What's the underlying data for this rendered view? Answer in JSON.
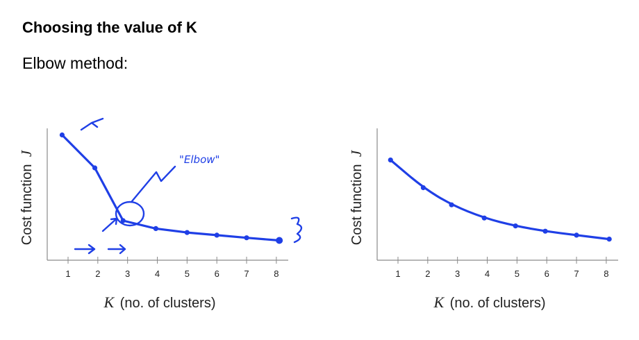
{
  "header": {
    "title": "Choosing the value of K",
    "subtitle": "Elbow method:"
  },
  "colors": {
    "ink": "#1f3fe6",
    "axis": "#8a8a8a",
    "text": "#222222"
  },
  "chart_data": [
    {
      "type": "line",
      "ylabel_text": "Cost function",
      "ylabel_symbol": "J",
      "xlabel_symbol": "K",
      "xlabel_text": "(no. of clusters)",
      "x_ticks": [
        "1",
        "2",
        "3",
        "4",
        "5",
        "6",
        "7",
        "8"
      ],
      "xlim": [
        0.3,
        8.4
      ],
      "ylim": [
        0,
        1
      ],
      "grid": false,
      "x": [
        0.8,
        1.9,
        2.85,
        3.95,
        5.0,
        6.0,
        7.0,
        8.1
      ],
      "values": [
        0.95,
        0.7,
        0.3,
        0.24,
        0.21,
        0.19,
        0.17,
        0.15
      ],
      "annotation": "\"Elbow\""
    },
    {
      "type": "line",
      "ylabel_text": "Cost function",
      "ylabel_symbol": "J",
      "xlabel_symbol": "K",
      "xlabel_text": "(no. of clusters)",
      "x_ticks": [
        "1",
        "2",
        "3",
        "4",
        "5",
        "6",
        "7",
        "8"
      ],
      "xlim": [
        0.3,
        8.4
      ],
      "ylim": [
        0,
        1
      ],
      "grid": false,
      "x": [
        0.75,
        1.85,
        2.8,
        3.9,
        4.95,
        5.95,
        7.0,
        8.1
      ],
      "values": [
        0.76,
        0.55,
        0.42,
        0.32,
        0.26,
        0.22,
        0.19,
        0.16
      ]
    }
  ]
}
